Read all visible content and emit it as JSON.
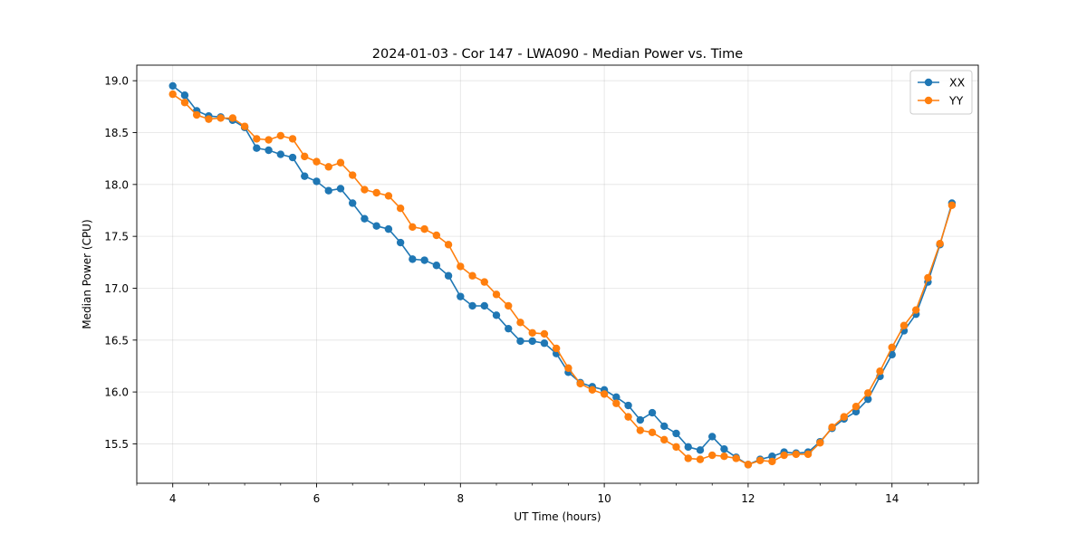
{
  "chart_data": {
    "type": "line",
    "title": "2024-01-03 - Cor 147 - LWA090 - Median Power vs. Time",
    "xlabel": "UT Time (hours)",
    "ylabel": "Median Power (CPU)",
    "xlim": [
      3.5,
      15.2
    ],
    "ylim": [
      15.12,
      19.15
    ],
    "xticks": [
      4,
      6,
      8,
      10,
      12,
      14
    ],
    "xtick_labels": [
      "4",
      "6",
      "8",
      "10",
      "12",
      "14"
    ],
    "x_minor_step": 0.5,
    "yticks": [
      15.5,
      16.0,
      16.5,
      17.0,
      17.5,
      18.0,
      18.5,
      19.0
    ],
    "ytick_labels": [
      "15.5",
      "16.0",
      "16.5",
      "17.0",
      "17.5",
      "18.0",
      "18.5",
      "19.0"
    ],
    "grid": true,
    "legend_position": "top-right",
    "x": [
      4.0,
      4.1667,
      4.3333,
      4.5,
      4.6667,
      4.8333,
      5.0,
      5.1667,
      5.3333,
      5.5,
      5.6667,
      5.8333,
      6.0,
      6.1667,
      6.3333,
      6.5,
      6.6667,
      6.8333,
      7.0,
      7.1667,
      7.3333,
      7.5,
      7.6667,
      7.8333,
      8.0,
      8.1667,
      8.3333,
      8.5,
      8.6667,
      8.8333,
      9.0,
      9.1667,
      9.3333,
      9.5,
      9.6667,
      9.8333,
      10.0,
      10.1667,
      10.3333,
      10.5,
      10.6667,
      10.8333,
      11.0,
      11.1667,
      11.3333,
      11.5,
      11.6667,
      11.8333,
      12.0,
      12.1667,
      12.3333,
      12.5,
      12.6667,
      12.8333,
      13.0,
      13.1667,
      13.3333,
      13.5,
      13.6667,
      13.8333,
      14.0,
      14.1667,
      14.3333,
      14.5,
      14.6667,
      14.8333
    ],
    "series": [
      {
        "name": "XX",
        "color": "#1f77b4",
        "values": [
          18.95,
          18.86,
          18.71,
          18.66,
          18.65,
          18.62,
          18.55,
          18.35,
          18.33,
          18.29,
          18.26,
          18.08,
          18.03,
          17.94,
          17.96,
          17.82,
          17.67,
          17.6,
          17.57,
          17.44,
          17.28,
          17.27,
          17.22,
          17.12,
          16.92,
          16.83,
          16.83,
          16.74,
          16.61,
          16.49,
          16.49,
          16.47,
          16.37,
          16.19,
          16.09,
          16.05,
          16.02,
          15.95,
          15.87,
          15.73,
          15.8,
          15.67,
          15.6,
          15.47,
          15.44,
          15.57,
          15.45,
          15.37,
          15.3,
          15.35,
          15.38,
          15.42,
          15.41,
          15.42,
          15.52,
          15.65,
          15.74,
          15.81,
          15.93,
          16.15,
          16.36,
          16.59,
          16.75,
          17.06,
          17.42,
          17.82
        ]
      },
      {
        "name": "YY",
        "color": "#ff7f0e",
        "values": [
          18.87,
          18.79,
          18.67,
          18.63,
          18.64,
          18.64,
          18.56,
          18.44,
          18.43,
          18.47,
          18.44,
          18.27,
          18.22,
          18.17,
          18.21,
          18.09,
          17.95,
          17.92,
          17.89,
          17.77,
          17.59,
          17.57,
          17.51,
          17.42,
          17.21,
          17.12,
          17.06,
          16.94,
          16.83,
          16.67,
          16.57,
          16.56,
          16.42,
          16.23,
          16.08,
          16.02,
          15.98,
          15.89,
          15.76,
          15.63,
          15.61,
          15.54,
          15.47,
          15.36,
          15.35,
          15.39,
          15.38,
          15.36,
          15.3,
          15.34,
          15.33,
          15.39,
          15.4,
          15.4,
          15.51,
          15.66,
          15.76,
          15.86,
          15.99,
          16.2,
          16.43,
          16.64,
          16.79,
          17.1,
          17.43,
          17.8
        ]
      }
    ]
  }
}
